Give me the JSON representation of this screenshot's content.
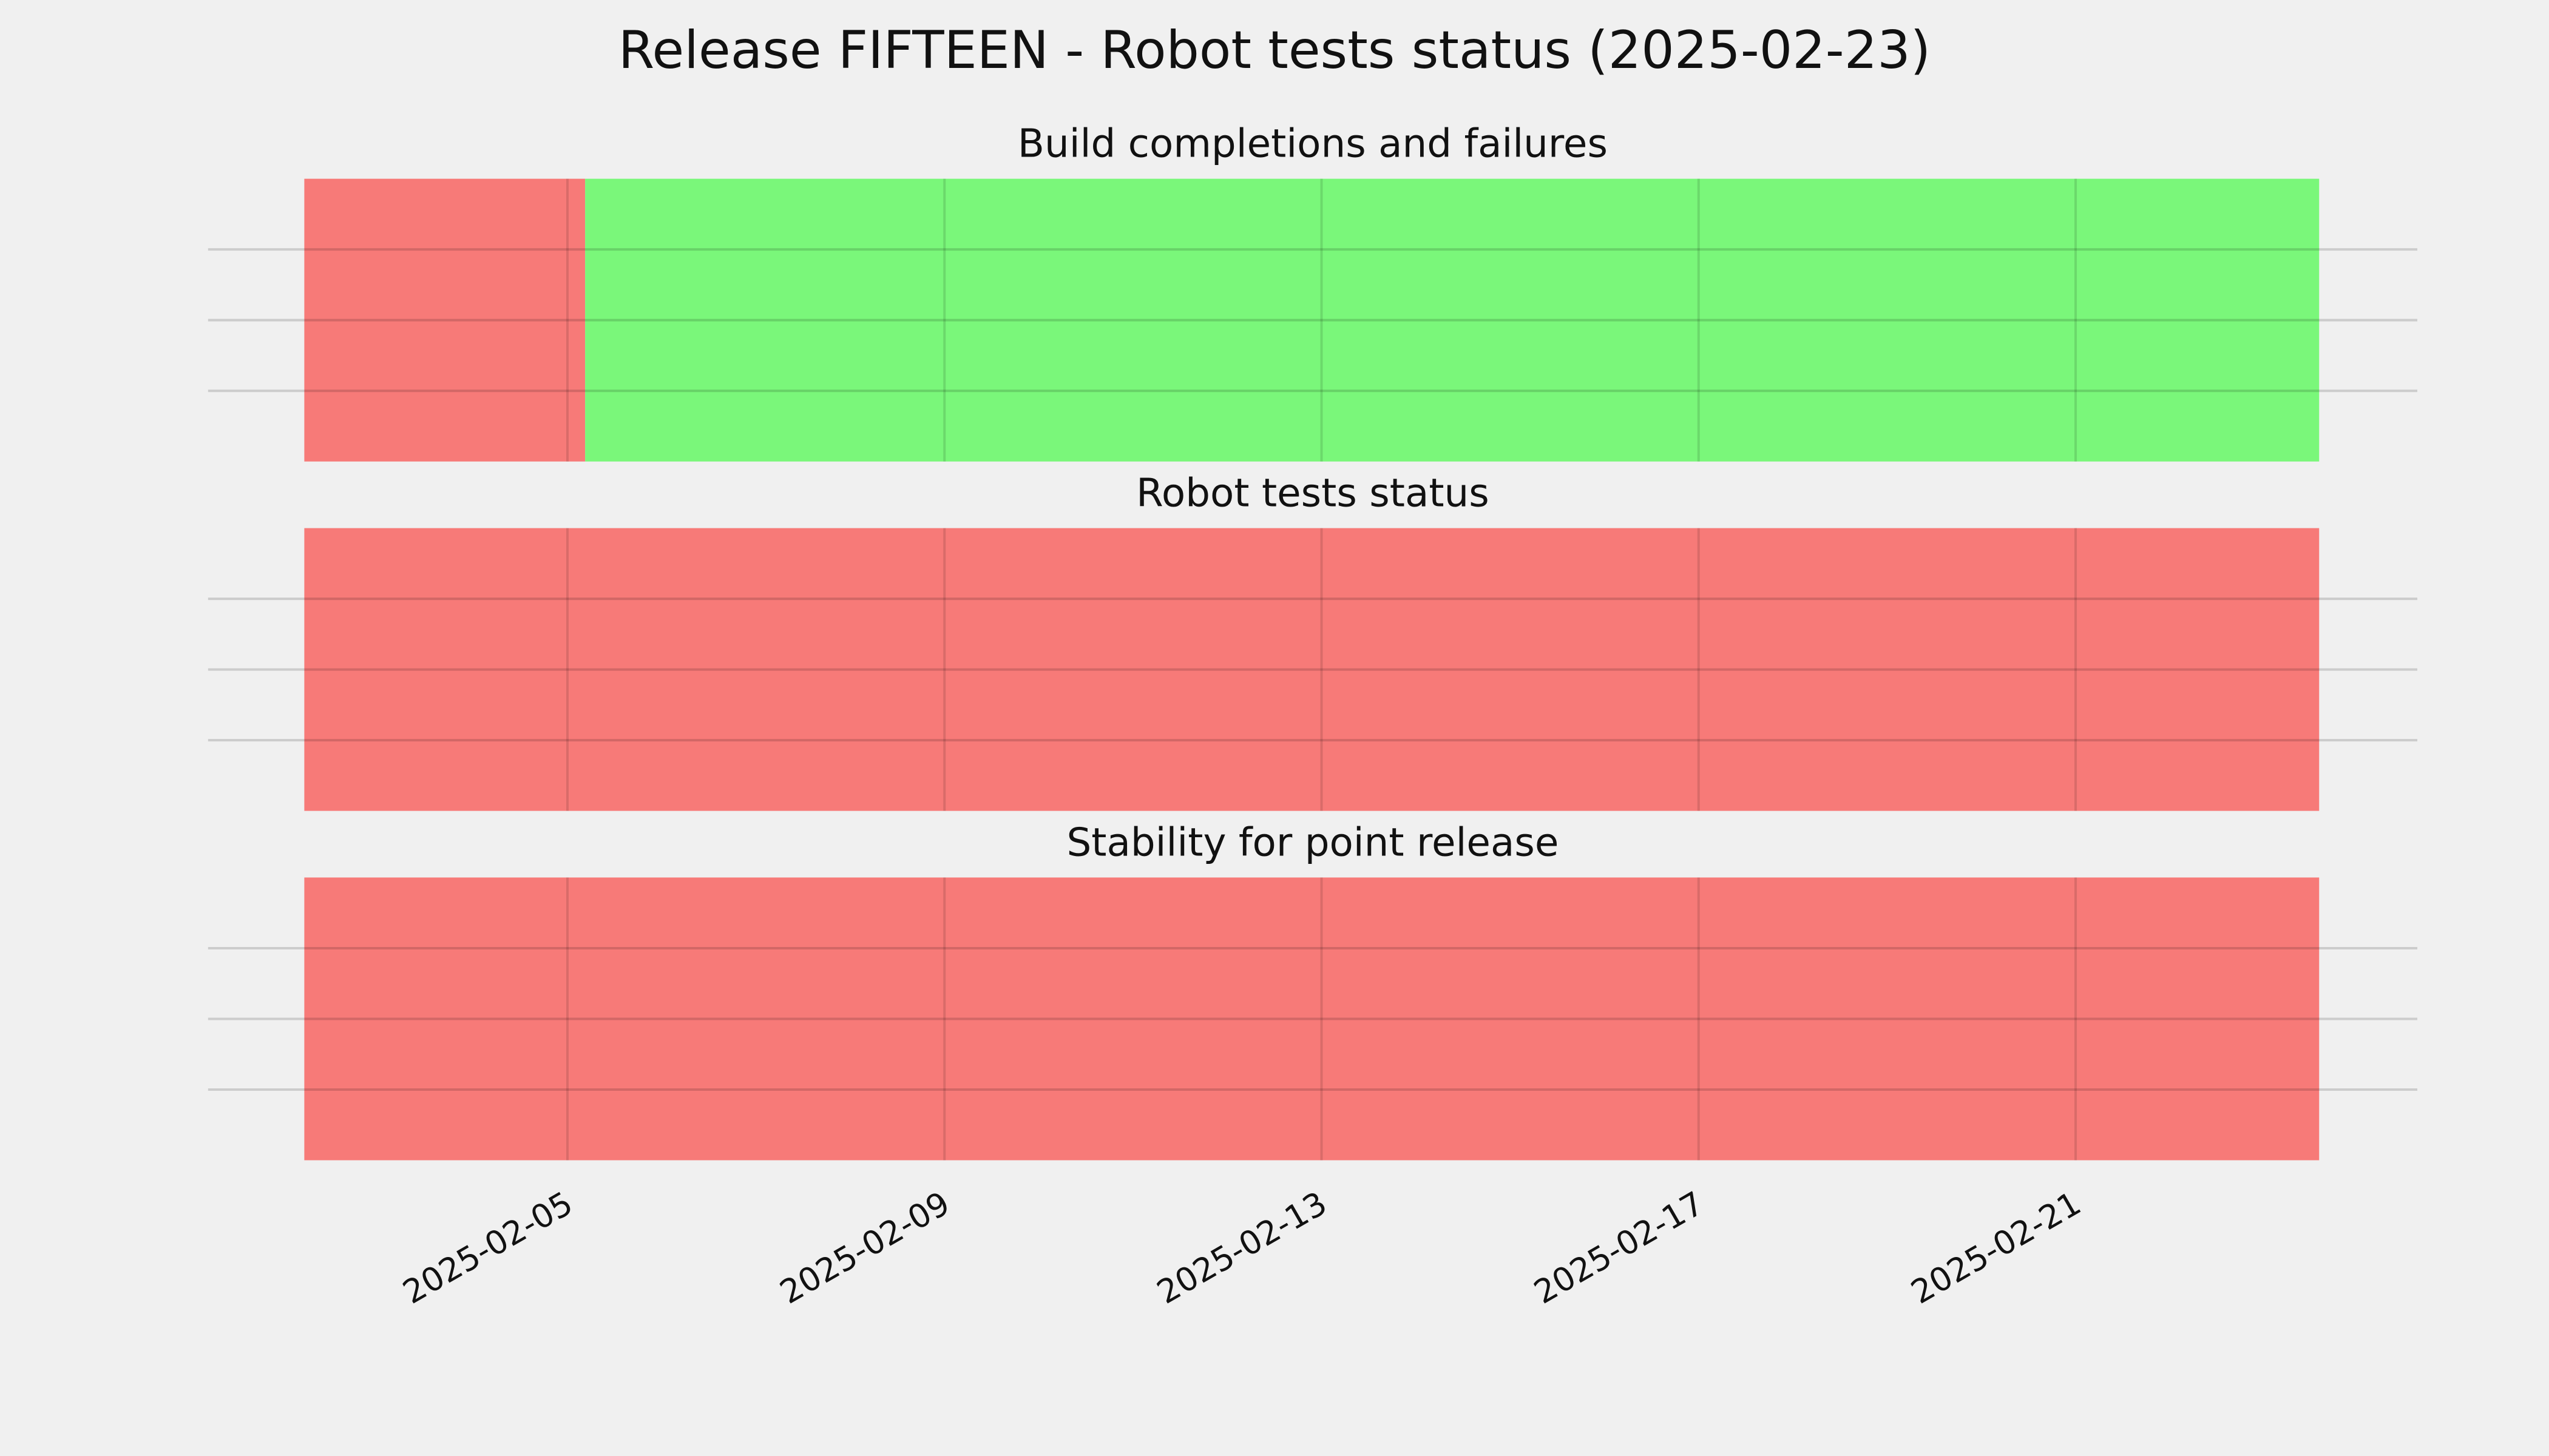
{
  "title": "Release FIFTEEN - Robot tests status (2025-02-23)",
  "chart_data": [
    {
      "type": "timeline",
      "title": "Build completions and failures",
      "segments": [
        {
          "start": "2025-02-02T05:00",
          "end": "2025-02-05T04:30",
          "color": "#f77775"
        },
        {
          "start": "2025-02-05T04:30",
          "end": "2025-02-23T14:00",
          "color": "#77f777"
        }
      ],
      "xlim": [
        "2025-02-01T04:30",
        "2025-02-24T15:00"
      ],
      "xticks": [
        "2025-02-05",
        "2025-02-09",
        "2025-02-13",
        "2025-02-17",
        "2025-02-21"
      ],
      "ylim": [
        0,
        1
      ],
      "yticks": [
        0.25,
        0.5,
        0.75
      ],
      "grid": true
    },
    {
      "type": "timeline",
      "title": "Robot tests status",
      "segments": [
        {
          "start": "2025-02-02T05:00",
          "end": "2025-02-23T14:00",
          "color": "#f77775"
        }
      ],
      "xlim": [
        "2025-02-01T04:30",
        "2025-02-24T15:00"
      ],
      "xticks": [
        "2025-02-05",
        "2025-02-09",
        "2025-02-13",
        "2025-02-17",
        "2025-02-21"
      ],
      "ylim": [
        0,
        1
      ],
      "yticks": [
        0.25,
        0.5,
        0.75
      ],
      "grid": true
    },
    {
      "type": "timeline",
      "title": "Stability for point release",
      "segments": [
        {
          "start": "2025-02-02T05:00",
          "end": "2025-02-23T14:00",
          "color": "#f77775"
        }
      ],
      "xlim": [
        "2025-02-01T04:30",
        "2025-02-24T15:00"
      ],
      "xticks": [
        "2025-02-05",
        "2025-02-09",
        "2025-02-13",
        "2025-02-17",
        "2025-02-21"
      ],
      "ylim": [
        0,
        1
      ],
      "yticks": [
        0.25,
        0.5,
        0.75
      ],
      "grid": true
    }
  ]
}
